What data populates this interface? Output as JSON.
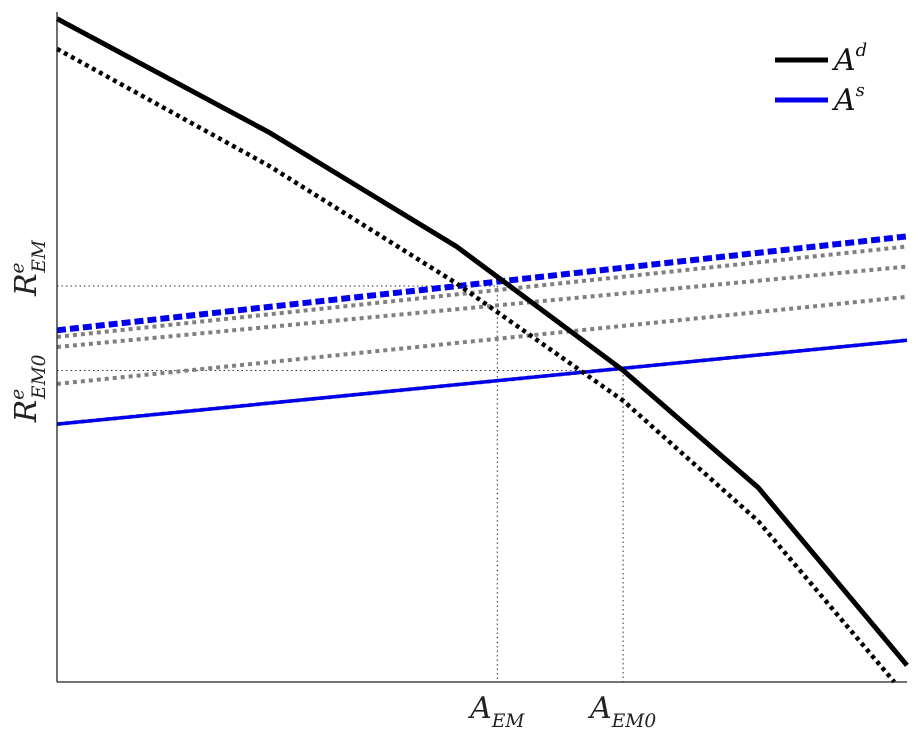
{
  "chart_data": {
    "type": "line",
    "xlim": [
      0,
      100
    ],
    "ylim": [
      0,
      100
    ],
    "grid": false,
    "legend_position": "top-right",
    "legend": [
      {
        "label": "A",
        "sup": "d",
        "color": "#000000"
      },
      {
        "label": "A",
        "sup": "s",
        "color": "#0000ee"
      }
    ],
    "x_ticks": [
      {
        "label": "A",
        "sub": "EM",
        "value": 51.8
      },
      {
        "label": "A",
        "sub": "EM0",
        "value": 66.6
      }
    ],
    "y_ticks": [
      {
        "label": "R",
        "sup": "e",
        "sub": "EM0",
        "value": 46.5
      },
      {
        "label": "R",
        "sup": "e",
        "sub": "EM",
        "value": 59.1
      }
    ],
    "demand_curves": [
      {
        "style": "solid",
        "color": "#000000",
        "points": [
          [
            0,
            99
          ],
          [
            25,
            82
          ],
          [
            47,
            65
          ],
          [
            66.6,
            46.5
          ],
          [
            82.5,
            29
          ],
          [
            100,
            2.5
          ]
        ]
      },
      {
        "style": "dotted",
        "color": "#000000",
        "points": [
          [
            0,
            94.5
          ],
          [
            25,
            77
          ],
          [
            47,
            59.5
          ],
          [
            66.6,
            42
          ],
          [
            82.5,
            24
          ],
          [
            98.5,
            0
          ]
        ]
      }
    ],
    "supply_curves": [
      {
        "style": "dotted",
        "color": "#808080",
        "points": [
          [
            0,
            38.5
          ],
          [
            100,
            51
          ]
        ]
      },
      {
        "style": "dotted",
        "color": "#808080",
        "points": [
          [
            0,
            44.5
          ],
          [
            100,
            57.5
          ]
        ]
      },
      {
        "style": "dotted",
        "color": "#808080",
        "points": [
          [
            0,
            50
          ],
          [
            100,
            62
          ]
        ]
      },
      {
        "style": "dotted",
        "color": "#808080",
        "points": [
          [
            0,
            51.5
          ],
          [
            100,
            65
          ]
        ]
      },
      {
        "style": "solid",
        "color": "#0000ee",
        "points": [
          [
            0,
            38.5
          ],
          [
            100,
            51
          ]
        ]
      },
      {
        "style": "dashed",
        "color": "#0000ee",
        "points": [
          [
            0,
            52.5
          ],
          [
            100,
            66.5
          ]
        ]
      }
    ],
    "reference_points": [
      {
        "x": 51.8,
        "y": 59.1
      },
      {
        "x": 66.6,
        "y": 46.5
      }
    ]
  }
}
